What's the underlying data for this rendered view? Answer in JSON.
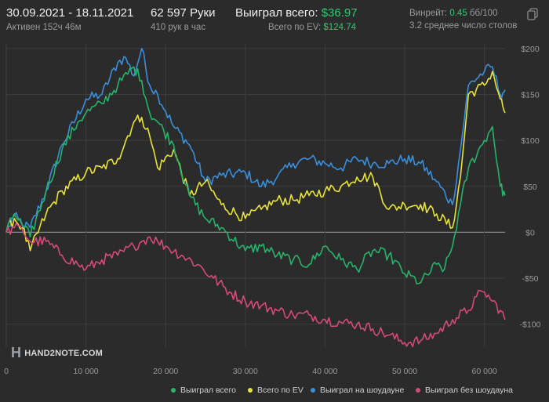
{
  "header": {
    "date_range": "30.09.2021 - 18.11.2021",
    "active_time": "Активен 152ч 46м",
    "hands_total": "62 597 Руки",
    "hands_per_hour": "410 рук в час",
    "won_total_label": "Выиграл всего:",
    "won_total_value": "$36.97",
    "ev_total_label": "Всего по EV:",
    "ev_total_value": "$124.74",
    "winrate_label": "Винрейт:",
    "winrate_value": "0.45",
    "winrate_unit": "бб/100",
    "avg_tables": "3.2 среднее число столов",
    "copy_icon": "copy-icon"
  },
  "logo": {
    "text": "HAND2NOTE.COM"
  },
  "legend": {
    "won": "Выиграл всего",
    "ev": "Всего по EV",
    "showdown": "Выиграл на шоудауне",
    "nonshowdown": "Выиграл без шоудауна"
  },
  "colors": {
    "won": "#27b36a",
    "ev": "#e8e33a",
    "showdown": "#3a8fdc",
    "nonshowdown": "#d64a7a",
    "accent_green": "#2ecc71"
  },
  "chart_data": {
    "type": "line",
    "xlabel": "",
    "ylabel": "",
    "xlim": [
      0,
      62597
    ],
    "ylim": [
      -125,
      205
    ],
    "x_ticks": [
      0,
      10000,
      20000,
      30000,
      40000,
      50000,
      60000
    ],
    "x_tick_labels": [
      "0",
      "10 000",
      "20 000",
      "30 000",
      "40 000",
      "50 000",
      "60 000"
    ],
    "y_ticks": [
      200,
      150,
      100,
      50,
      0,
      -50,
      -100
    ],
    "y_tick_labels": [
      "$200",
      "$150",
      "$100",
      "$50",
      "$0",
      "-$50",
      "-$100"
    ],
    "grid": true,
    "legend_position": "bottom",
    "series": [
      {
        "name": "Выиграл на шоудауне",
        "key": "showdown",
        "x": [
          0,
          1000,
          2000,
          3000,
          5000,
          7000,
          10000,
          12000,
          14000,
          15000,
          16000,
          17000,
          18000,
          19000,
          21000,
          23000,
          25000,
          27000,
          30000,
          32000,
          34000,
          36000,
          38000,
          40000,
          42000,
          44000,
          46000,
          48000,
          50000,
          52000,
          54000,
          56000,
          57000,
          58000,
          60000,
          61000,
          62000,
          62597
        ],
        "y": [
          0,
          18,
          8,
          5,
          45,
          95,
          145,
          150,
          185,
          190,
          170,
          200,
          160,
          150,
          115,
          95,
          55,
          62,
          65,
          50,
          60,
          75,
          80,
          75,
          70,
          80,
          75,
          75,
          80,
          75,
          55,
          30,
          90,
          160,
          175,
          180,
          150,
          155
        ]
      },
      {
        "name": "Всего по EV",
        "key": "ev",
        "x": [
          0,
          1000,
          2000,
          3000,
          5000,
          7000,
          10000,
          12000,
          14000,
          16000,
          17000,
          18000,
          19000,
          21000,
          23000,
          25000,
          27000,
          30000,
          32000,
          34000,
          36000,
          38000,
          40000,
          42000,
          44000,
          46000,
          48000,
          50000,
          52000,
          54000,
          56000,
          57000,
          58000,
          60000,
          61000,
          62000,
          62597
        ],
        "y": [
          0,
          15,
          5,
          -20,
          20,
          45,
          65,
          70,
          80,
          120,
          125,
          105,
          70,
          90,
          40,
          55,
          30,
          15,
          25,
          35,
          35,
          40,
          45,
          50,
          60,
          60,
          25,
          30,
          30,
          20,
          5,
          60,
          150,
          160,
          175,
          145,
          130
        ]
      },
      {
        "name": "Выиграл всего",
        "key": "won",
        "x": [
          0,
          1000,
          2000,
          3000,
          5000,
          7000,
          9000,
          10000,
          12000,
          14000,
          16000,
          17000,
          18000,
          19000,
          21000,
          23000,
          25000,
          27000,
          30000,
          32000,
          34000,
          36000,
          38000,
          40000,
          42000,
          44000,
          46000,
          48000,
          50000,
          52000,
          54000,
          55000,
          56000,
          57000,
          58000,
          60000,
          61000,
          62000,
          62597
        ],
        "y": [
          0,
          20,
          8,
          -5,
          45,
          90,
          120,
          130,
          140,
          160,
          180,
          165,
          130,
          120,
          95,
          40,
          15,
          5,
          -20,
          -15,
          -25,
          -30,
          -35,
          -15,
          -30,
          -40,
          -20,
          -25,
          -45,
          -55,
          -35,
          -40,
          -15,
          30,
          70,
          100,
          115,
          50,
          40
        ]
      },
      {
        "name": "Выиграл без шоудауна",
        "key": "nonshowdown",
        "x": [
          0,
          1000,
          2000,
          3000,
          5000,
          7000,
          9000,
          10000,
          12000,
          14000,
          16000,
          17000,
          18000,
          19000,
          20000,
          22000,
          24000,
          26000,
          28000,
          30000,
          32000,
          34000,
          36000,
          38000,
          40000,
          42000,
          44000,
          46000,
          48000,
          50000,
          52000,
          54000,
          56000,
          58000,
          59000,
          60000,
          61000,
          62000,
          62597
        ],
        "y": [
          0,
          5,
          3,
          -10,
          -10,
          -25,
          -35,
          -40,
          -30,
          -25,
          -15,
          -10,
          -5,
          -10,
          -15,
          -25,
          -35,
          -50,
          -65,
          -75,
          -80,
          -85,
          -90,
          -90,
          -95,
          -98,
          -100,
          -105,
          -112,
          -120,
          -118,
          -110,
          -95,
          -85,
          -70,
          -65,
          -75,
          -85,
          -95
        ]
      }
    ]
  }
}
